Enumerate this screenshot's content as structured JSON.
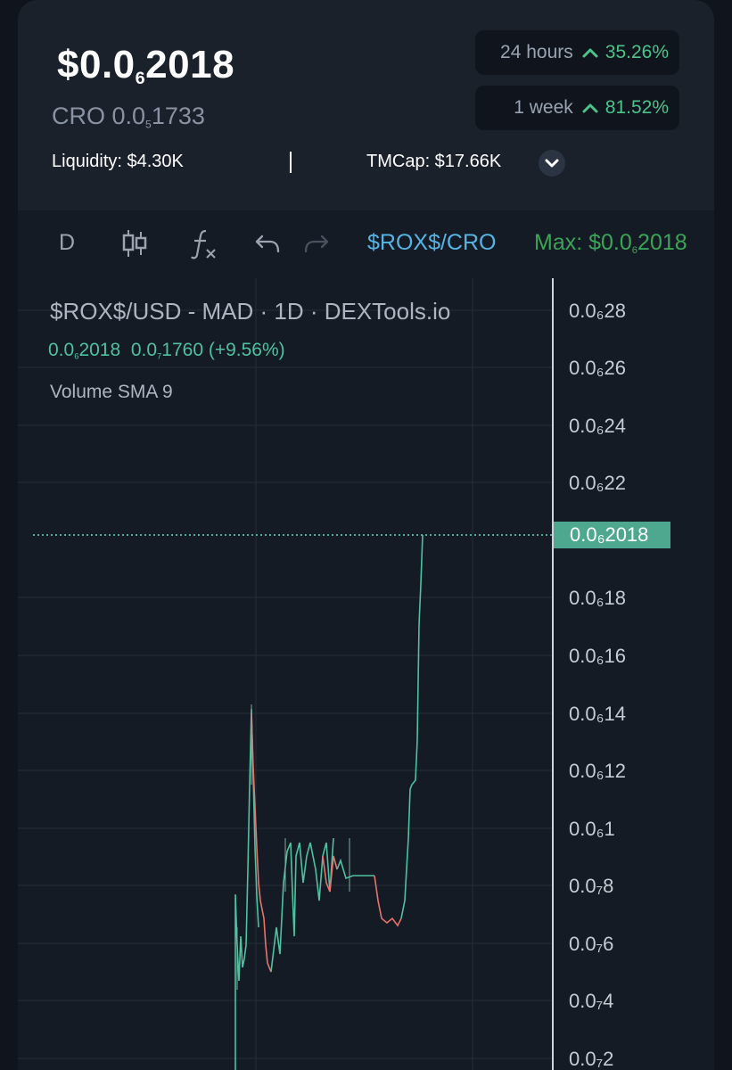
{
  "header": {
    "price_main": "$0.0",
    "price_sub": "6",
    "price_tail": "2018",
    "cro_main": "CRO 0.0",
    "cro_sub": "5",
    "cro_tail": "1733",
    "liquidity": "Liquidity: $4.30K",
    "tmcap": "TMCap: $17.66K",
    "change_24h_label": "24 hours",
    "change_24h_value": "35.26%",
    "change_1w_label": "1 week",
    "change_1w_value": "81.52%"
  },
  "toolbar": {
    "interval": "D",
    "pair": "$ROX$/CRO",
    "max_label": "Max: $0.0",
    "max_sub": "6",
    "max_tail": "2018"
  },
  "legend": {
    "title": "$ROX$/USD - MAD · 1D · DEXTools.io",
    "open_main": "0.0",
    "open_sub": "6",
    "open_tail": "2018",
    "change_main": "0.0",
    "change_sub": "7",
    "change_tail": "1760 (+9.56%)",
    "volume": "Volume SMA 9"
  },
  "price_axis": {
    "labels": [
      "0.0₆28",
      "0.0₆26",
      "0.0₆24",
      "0.0₆22",
      "0.0₆18",
      "0.0₆16",
      "0.0₆14",
      "0.0₆12",
      "0.0₆1",
      "0.0₇8",
      "0.0₇6",
      "0.0₇4",
      "0.0₇2"
    ],
    "current": "0.0₆2018"
  },
  "colors": {
    "up": "#4ec2a0",
    "down": "#e5736e",
    "accent_green": "#4cc38a",
    "pair_blue": "#56b4e3"
  }
}
